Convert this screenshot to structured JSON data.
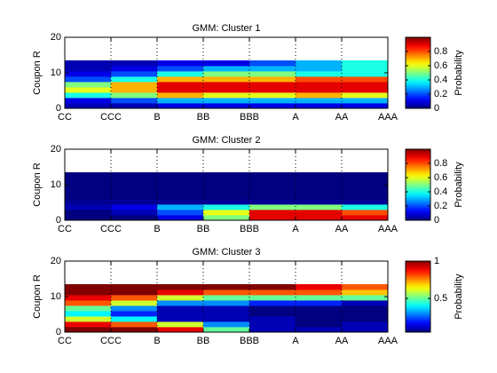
{
  "chart_data": [
    {
      "type": "heatmap",
      "title": "GMM: Cluster 1",
      "ylabel": "Coupon R",
      "colorbar_label": "Probability",
      "xlim": [
        0,
        7
      ],
      "xticks": [
        {
          "value": 0,
          "label": "CC"
        },
        {
          "value": 1,
          "label": "CCC"
        },
        {
          "value": 2,
          "label": "B"
        },
        {
          "value": 3,
          "label": "BB"
        },
        {
          "value": 4,
          "label": "BBB"
        },
        {
          "value": 5,
          "label": "A"
        },
        {
          "value": 6,
          "label": "AA"
        },
        {
          "value": 7,
          "label": "AAA"
        }
      ],
      "ylim": [
        0,
        20
      ],
      "yticks": [
        0,
        10,
        20
      ],
      "grid": true,
      "colormap": "jet",
      "xbins": [
        0,
        1,
        2,
        3,
        4,
        5,
        6,
        7
      ],
      "ybins": [
        0,
        1.5,
        3,
        4.5,
        6,
        7.5,
        9,
        10.5,
        12,
        13.5
      ],
      "clim": [
        0,
        1
      ],
      "cticks": [
        0,
        0.2,
        0.4,
        0.6,
        0.8
      ],
      "z": [
        [
          0.05,
          0.05,
          0.1,
          0.1,
          0.1,
          0.1,
          0.1
        ],
        [
          0.1,
          0.2,
          0.3,
          0.3,
          0.3,
          0.3,
          0.3
        ],
        [
          0.4,
          0.5,
          0.7,
          0.6,
          0.6,
          0.7,
          0.6
        ],
        [
          0.6,
          0.7,
          0.9,
          0.9,
          0.9,
          0.9,
          0.9
        ],
        [
          0.5,
          0.7,
          0.9,
          0.9,
          0.9,
          0.9,
          0.9
        ],
        [
          0.2,
          0.4,
          0.7,
          0.7,
          0.7,
          0.8,
          0.8
        ],
        [
          0.1,
          0.2,
          0.4,
          0.5,
          0.5,
          0.4,
          0.4
        ],
        [
          0.05,
          0.1,
          0.2,
          0.3,
          0.3,
          0.3,
          0.4
        ],
        [
          0.05,
          0.05,
          0.1,
          0.1,
          0.2,
          0.3,
          0.4
        ]
      ]
    },
    {
      "type": "heatmap",
      "title": "GMM: Cluster 2",
      "ylabel": "Coupon R",
      "colorbar_label": "Probability",
      "xlim": [
        0,
        7
      ],
      "xticks": [
        {
          "value": 0,
          "label": "CC"
        },
        {
          "value": 1,
          "label": "CCC"
        },
        {
          "value": 2,
          "label": "B"
        },
        {
          "value": 3,
          "label": "BB"
        },
        {
          "value": 4,
          "label": "BBB"
        },
        {
          "value": 5,
          "label": "A"
        },
        {
          "value": 6,
          "label": "AA"
        },
        {
          "value": 7,
          "label": "AAA"
        }
      ],
      "ylim": [
        0,
        20
      ],
      "yticks": [
        0,
        10,
        20
      ],
      "grid": true,
      "colormap": "jet",
      "xbins": [
        0,
        1,
        2,
        3,
        4,
        5,
        6,
        7
      ],
      "ybins": [
        0,
        1.5,
        3,
        4.5,
        6,
        7.5,
        9,
        10.5,
        12,
        13.5
      ],
      "clim": [
        0,
        1
      ],
      "cticks": [
        0,
        0.2,
        0.4,
        0.6,
        0.8
      ],
      "z": [
        [
          0,
          0,
          0.1,
          0.5,
          0.9,
          0.9,
          0.9
        ],
        [
          0,
          0.05,
          0.2,
          0.6,
          0.9,
          0.9,
          0.8
        ],
        [
          0.05,
          0.1,
          0.3,
          0.4,
          0.5,
          0.5,
          0.4
        ],
        [
          0.02,
          0.02,
          0.02,
          0.02,
          0.02,
          0.02,
          0.02
        ],
        [
          0,
          0,
          0,
          0,
          0,
          0,
          0
        ],
        [
          0,
          0,
          0,
          0,
          0,
          0,
          0
        ],
        [
          0,
          0,
          0,
          0,
          0,
          0,
          0
        ],
        [
          0,
          0,
          0,
          0,
          0,
          0,
          0
        ],
        [
          0,
          0,
          0,
          0,
          0,
          0,
          0
        ]
      ]
    },
    {
      "type": "heatmap",
      "title": "GMM: Cluster 3",
      "ylabel": "Coupon R",
      "colorbar_label": "Probability",
      "xlim": [
        0,
        7
      ],
      "xticks": [
        {
          "value": 0,
          "label": "CC"
        },
        {
          "value": 1,
          "label": "CCC"
        },
        {
          "value": 2,
          "label": "B"
        },
        {
          "value": 3,
          "label": "BB"
        },
        {
          "value": 4,
          "label": "BBB"
        },
        {
          "value": 5,
          "label": "A"
        },
        {
          "value": 6,
          "label": "AA"
        },
        {
          "value": 7,
          "label": "AAA"
        }
      ],
      "ylim": [
        0,
        20
      ],
      "yticks": [
        0,
        10,
        20
      ],
      "grid": true,
      "colormap": "jet",
      "xbins": [
        0,
        1,
        2,
        3,
        4,
        5,
        6,
        7
      ],
      "ybins": [
        0,
        1.5,
        3,
        4.5,
        6,
        7.5,
        9,
        10.5,
        12,
        13.5
      ],
      "clim": [
        0.05,
        1
      ],
      "cticks": [
        0.5,
        1
      ],
      "z": [
        [
          1,
          1,
          0.9,
          0.5,
          0.1,
          0.1,
          0.1
        ],
        [
          0.9,
          0.8,
          0.6,
          0.3,
          0.1,
          0.05,
          0.1
        ],
        [
          0.6,
          0.4,
          0.1,
          0.1,
          0.1,
          0.05,
          0.05
        ],
        [
          0.4,
          0.2,
          0.1,
          0.1,
          0.05,
          0.05,
          0.05
        ],
        [
          0.5,
          0.3,
          0.1,
          0.1,
          0.05,
          0.05,
          0.05
        ],
        [
          0.8,
          0.6,
          0.3,
          0.3,
          0.2,
          0.2,
          0.1
        ],
        [
          0.9,
          0.8,
          0.6,
          0.5,
          0.5,
          0.5,
          0.5
        ],
        [
          1,
          1,
          0.9,
          0.8,
          0.8,
          0.8,
          0.7
        ],
        [
          1,
          1,
          1,
          1,
          1,
          0.9,
          0.8
        ]
      ]
    }
  ]
}
